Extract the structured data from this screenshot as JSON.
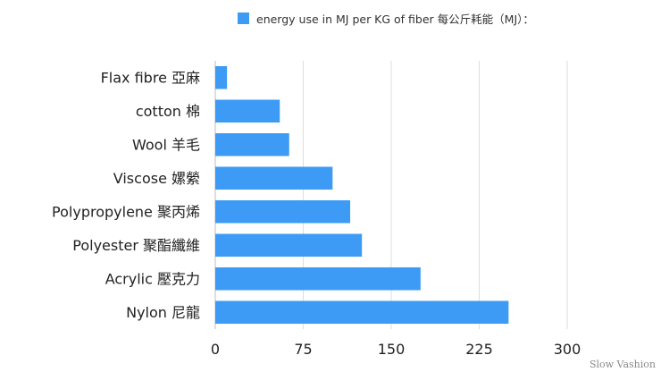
{
  "chart_data": {
    "type": "bar",
    "orientation": "horizontal",
    "title": "",
    "xlabel": "",
    "ylabel": "",
    "categories": [
      "Flax fibre 亞麻",
      "cotton 棉",
      "Wool 羊毛",
      "Viscose 嫘縈",
      "Polypropylene 聚丙烯",
      "Polyester 聚酯纖維",
      "Acrylic 壓克力",
      "Nylon 尼龍"
    ],
    "series": [
      {
        "name": "energy use in MJ per KG of fiber 每公斤耗能（MJ）：",
        "values": [
          10,
          55,
          63,
          100,
          115,
          125,
          175,
          250
        ],
        "color": "#3d9bf5"
      }
    ],
    "xlim": [
      0,
      300
    ],
    "xticks": [
      0,
      75,
      150,
      225,
      300
    ],
    "grid": true,
    "legend_position": "top"
  },
  "watermark": "Slow Vashion"
}
